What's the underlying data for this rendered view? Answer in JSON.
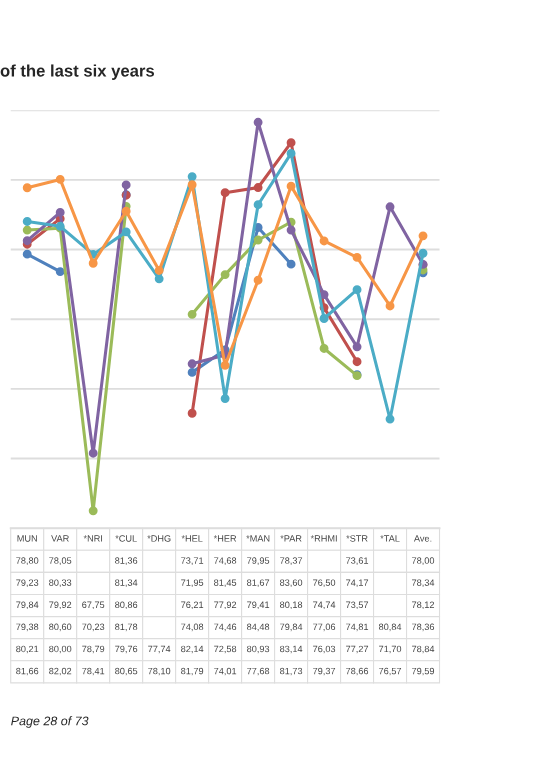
{
  "chart_data": {
    "type": "line",
    "title": "of the last six years",
    "categories": [
      "MUN",
      "VAR",
      "*NRI",
      "*CUL",
      "*DHG",
      "*HEL",
      "*HER",
      "*MAN",
      "*PAR",
      "*RHMI",
      "*STR",
      "*TAL",
      "Ave."
    ],
    "series": [
      {
        "color": "#4f81bd",
        "values": [
          78.8,
          78.05,
          null,
          81.36,
          null,
          73.71,
          74.68,
          79.95,
          78.37,
          null,
          73.61,
          null,
          78.0
        ],
        "value_labels": [
          "78,80",
          "78,05",
          null,
          "81,36",
          null,
          "73,71",
          "74,68",
          "79,95",
          "78,37",
          null,
          "73,61",
          null,
          "78,00"
        ]
      },
      {
        "color": "#c0504d",
        "values": [
          79.23,
          80.33,
          null,
          81.34,
          null,
          71.95,
          81.45,
          81.67,
          83.6,
          76.5,
          74.17,
          null,
          78.34
        ],
        "value_labels": [
          "79,23",
          "80,33",
          null,
          "81,34",
          null,
          "71,95",
          "81,45",
          "81,67",
          "83,60",
          "76,50",
          "74,17",
          null,
          "78,34"
        ]
      },
      {
        "color": "#9bbb59",
        "values": [
          79.84,
          79.92,
          67.75,
          80.86,
          null,
          76.21,
          77.92,
          79.41,
          80.18,
          74.74,
          73.57,
          null,
          78.12
        ],
        "value_labels": [
          "79,84",
          "79,92",
          "67,75",
          "80,86",
          null,
          "76,21",
          "77,92",
          "79,41",
          "80,18",
          "74,74",
          "73,57",
          null,
          "78,12"
        ]
      },
      {
        "color": "#8064a2",
        "values": [
          79.38,
          80.6,
          70.23,
          81.78,
          null,
          74.08,
          74.46,
          84.48,
          79.84,
          77.06,
          74.81,
          80.84,
          78.36
        ],
        "value_labels": [
          "79,38",
          "80,60",
          "70,23",
          "81,78",
          null,
          "74,08",
          "74,46",
          "84,48",
          "79,84",
          "77,06",
          "74,81",
          "80,84",
          "78,36"
        ]
      },
      {
        "color": "#4bacc6",
        "values": [
          80.21,
          80.0,
          78.79,
          79.76,
          77.74,
          82.14,
          72.58,
          80.93,
          83.14,
          76.03,
          77.27,
          71.7,
          78.84
        ],
        "value_labels": [
          "80,21",
          "80,00",
          "78,79",
          "79,76",
          "77,74",
          "82,14",
          "72,58",
          "80,93",
          "83,14",
          "76,03",
          "77,27",
          "71,70",
          "78,84"
        ]
      },
      {
        "color": "#f79646",
        "values": [
          81.66,
          82.02,
          78.41,
          80.65,
          78.1,
          81.79,
          74.01,
          77.68,
          81.73,
          79.37,
          78.66,
          76.57,
          79.59
        ],
        "value_labels": [
          "81,66",
          "82,02",
          "78,41",
          "80,65",
          "78,10",
          "81,79",
          "74,01",
          "77,68",
          "81,73",
          "79,37",
          "78,66",
          "76,57",
          "79,59"
        ]
      }
    ],
    "ylim": [
      67,
      85
    ],
    "yticks": [
      {
        "value": 70,
        "label": null
      },
      {
        "value": 73,
        "label": null
      },
      {
        "value": 76,
        "label": null
      },
      {
        "value": 79,
        "label": null
      },
      {
        "value": 82,
        "label": null
      },
      {
        "value": 85,
        "label": null
      }
    ],
    "tick_labels": false,
    "grid": "y",
    "legend": false,
    "marker": "circle",
    "line_style": "solid",
    "annotations": [
      "Page 28 of 73"
    ]
  }
}
